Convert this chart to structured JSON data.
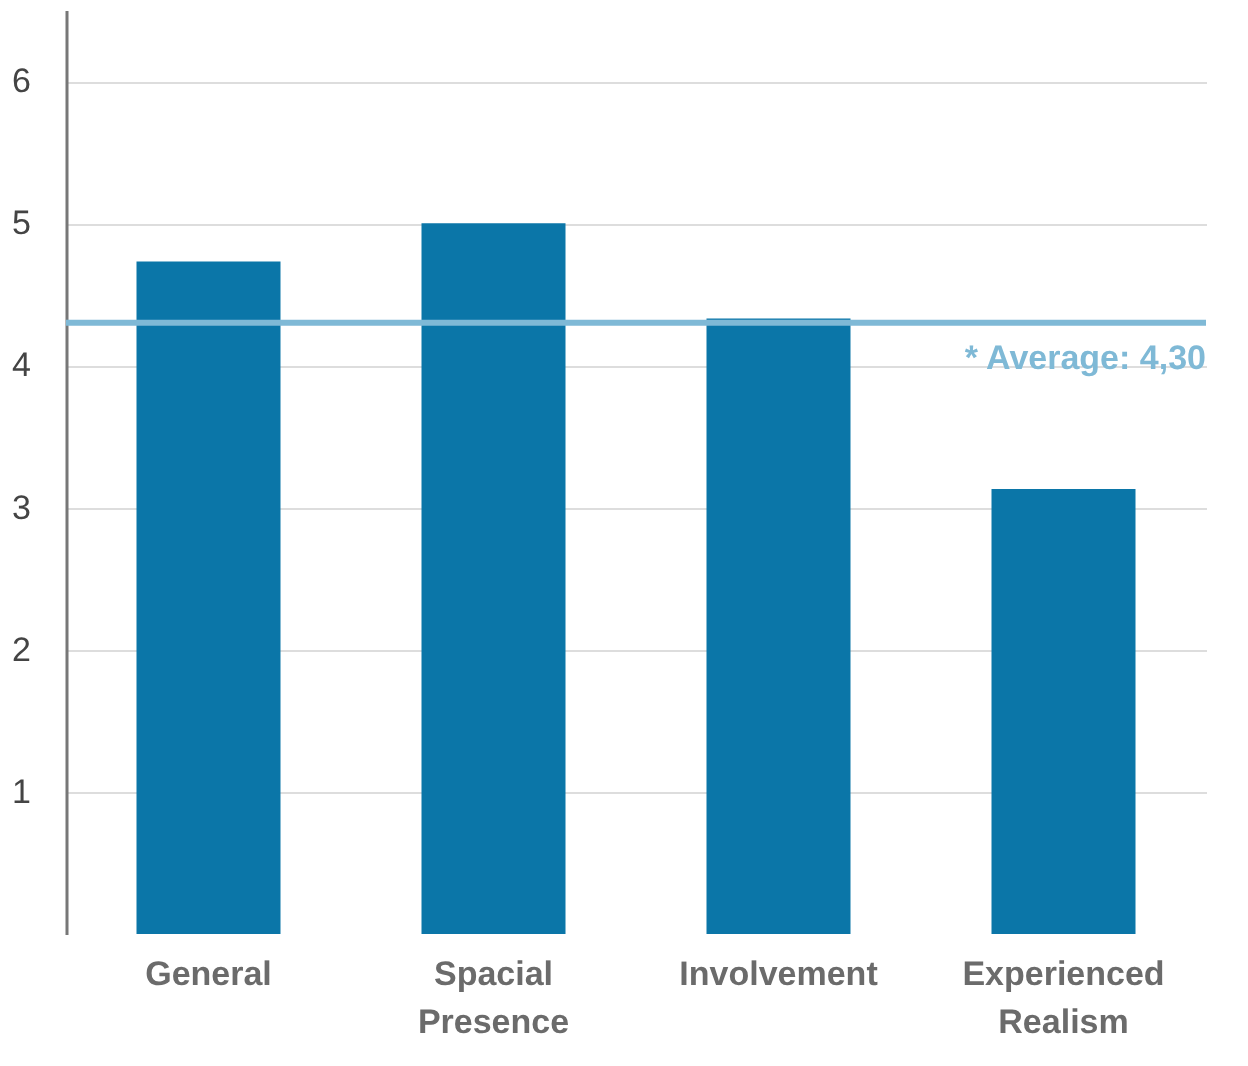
{
  "chart_data": {
    "type": "bar",
    "categories": [
      "General",
      "Spacial Presence",
      "Involvement",
      "Experienced Realism"
    ],
    "values": [
      4.73,
      5.0,
      4.33,
      3.13
    ],
    "color": "#0b76a8",
    "ylim": [
      0,
      6.5
    ],
    "yticks": [
      1,
      2,
      3,
      4,
      5,
      6
    ],
    "grid": "y",
    "ref_lines": [
      {
        "axis": "y",
        "value": 4.3,
        "label": "* Average: 4,30",
        "color": "#7fb9d6"
      }
    ]
  }
}
